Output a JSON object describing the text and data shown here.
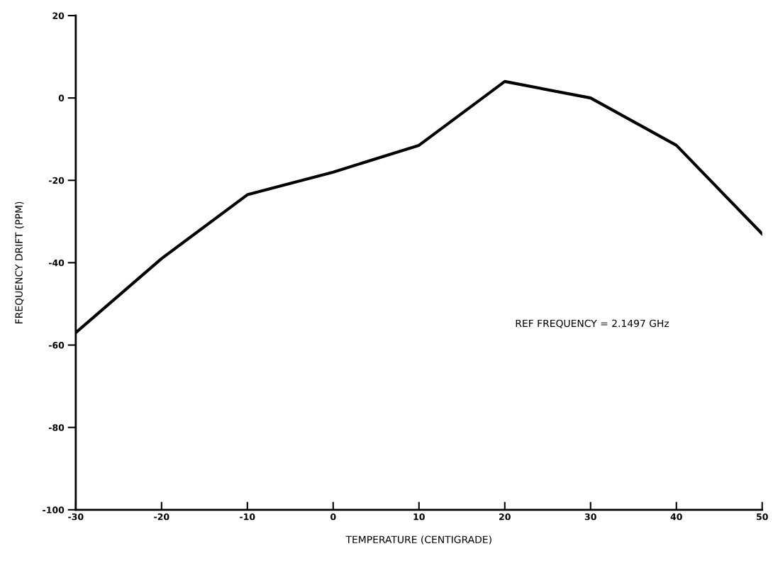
{
  "chart_data": {
    "type": "line",
    "xlabel": "TEMPERATURE (CENTIGRADE)",
    "ylabel": "FREQUENCY DRIFT (PPM)",
    "x": [
      -30,
      -20,
      -10,
      0,
      10,
      20,
      30,
      40,
      50
    ],
    "series": [
      {
        "color": "#000000",
        "values": [
          -57,
          -39,
          -23.5,
          -18,
          -11.5,
          4,
          0,
          -11.5,
          -33
        ]
      }
    ],
    "xlim": [
      -30,
      50
    ],
    "xticks": [
      -30,
      -20,
      -10,
      0,
      10,
      20,
      30,
      40,
      50
    ],
    "ylim": [
      -100,
      20
    ],
    "yticks": [
      -100,
      -80,
      -60,
      -40,
      -20,
      0,
      20
    ],
    "grid": false,
    "legend": false,
    "marker": "none",
    "line_style": "solid",
    "annotations": [
      "REF FREQUENCY = 2.1497 GHz"
    ]
  }
}
